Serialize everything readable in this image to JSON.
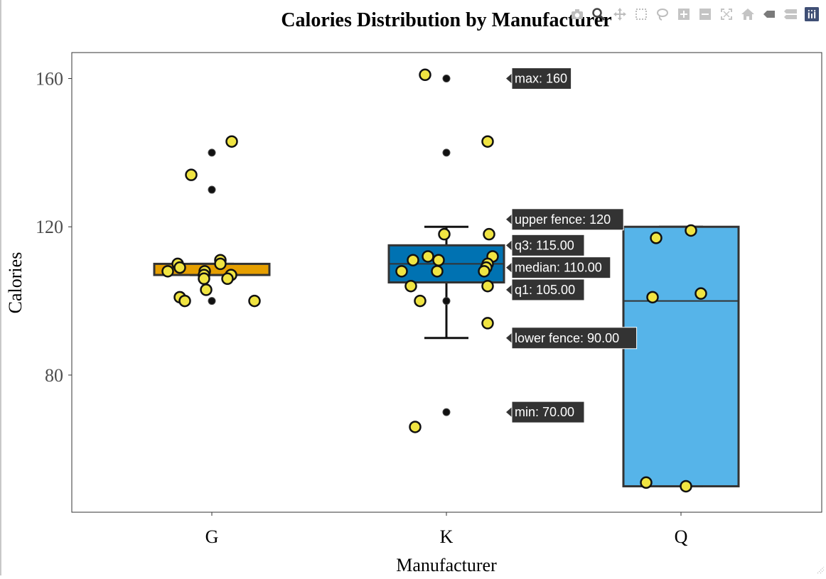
{
  "chart_data": {
    "type": "box",
    "title": "Calories Distribution by Manufacturer",
    "xlabel": "Manufacturer",
    "ylabel": "Calories",
    "categories": [
      "G",
      "K",
      "Q"
    ],
    "ylim": [
      43,
      167
    ],
    "yticks": [
      80,
      120,
      160
    ],
    "grid": false,
    "legend": "none",
    "boxes": [
      {
        "category": "G",
        "color": "#E69F00",
        "min": 100,
        "lower_fence": 107,
        "q1": 107,
        "median": 110,
        "q3": 110,
        "upper_fence": 110,
        "max": 140,
        "outliers": [
          140,
          130,
          100
        ]
      },
      {
        "category": "K",
        "color": "#0072B2",
        "min": 70,
        "lower_fence": 90,
        "q1": 105,
        "median": 110,
        "q3": 115,
        "upper_fence": 120,
        "max": 160,
        "outliers": [
          160,
          140,
          70,
          100
        ]
      },
      {
        "category": "Q",
        "color": "#56B4E9",
        "min": 50,
        "lower_fence": 50,
        "q1": 50,
        "median": 100,
        "q3": 120,
        "upper_fence": 120,
        "max": 120,
        "outliers": []
      }
    ],
    "jitter_points": [
      {
        "category": "G",
        "values": [
          143,
          134,
          111,
          110,
          110,
          109,
          108,
          108,
          107,
          107,
          106,
          106,
          103,
          101,
          100,
          100
        ]
      },
      {
        "category": "K",
        "values": [
          161,
          143,
          118,
          118,
          112,
          112,
          111,
          111,
          110,
          109,
          108,
          108,
          108,
          104,
          104,
          100,
          94,
          66
        ]
      },
      {
        "category": "Q",
        "values": [
          119,
          117,
          102,
          101,
          51,
          50
        ]
      }
    ],
    "jitter_color": "#F0E442",
    "hover_labels": [
      {
        "text": "max: 160",
        "y": 160
      },
      {
        "text": "upper fence: 120",
        "y": 122
      },
      {
        "text": "q3: 115.00",
        "y": 115
      },
      {
        "text": "median: 110.00",
        "y": 109
      },
      {
        "text": "q1: 105.00",
        "y": 103
      },
      {
        "text": "lower fence: 90.00",
        "y": 90
      },
      {
        "text": "min: 70.00",
        "y": 70
      }
    ]
  },
  "modebar": {
    "icons": [
      "camera-icon",
      "zoom-icon",
      "pan-icon",
      "box-select-icon",
      "lasso-icon",
      "zoom-in-icon",
      "zoom-out-icon",
      "autoscale-icon",
      "home-icon",
      "hover-closest-icon",
      "hover-compare-icon",
      "plotly-logo-icon"
    ]
  }
}
